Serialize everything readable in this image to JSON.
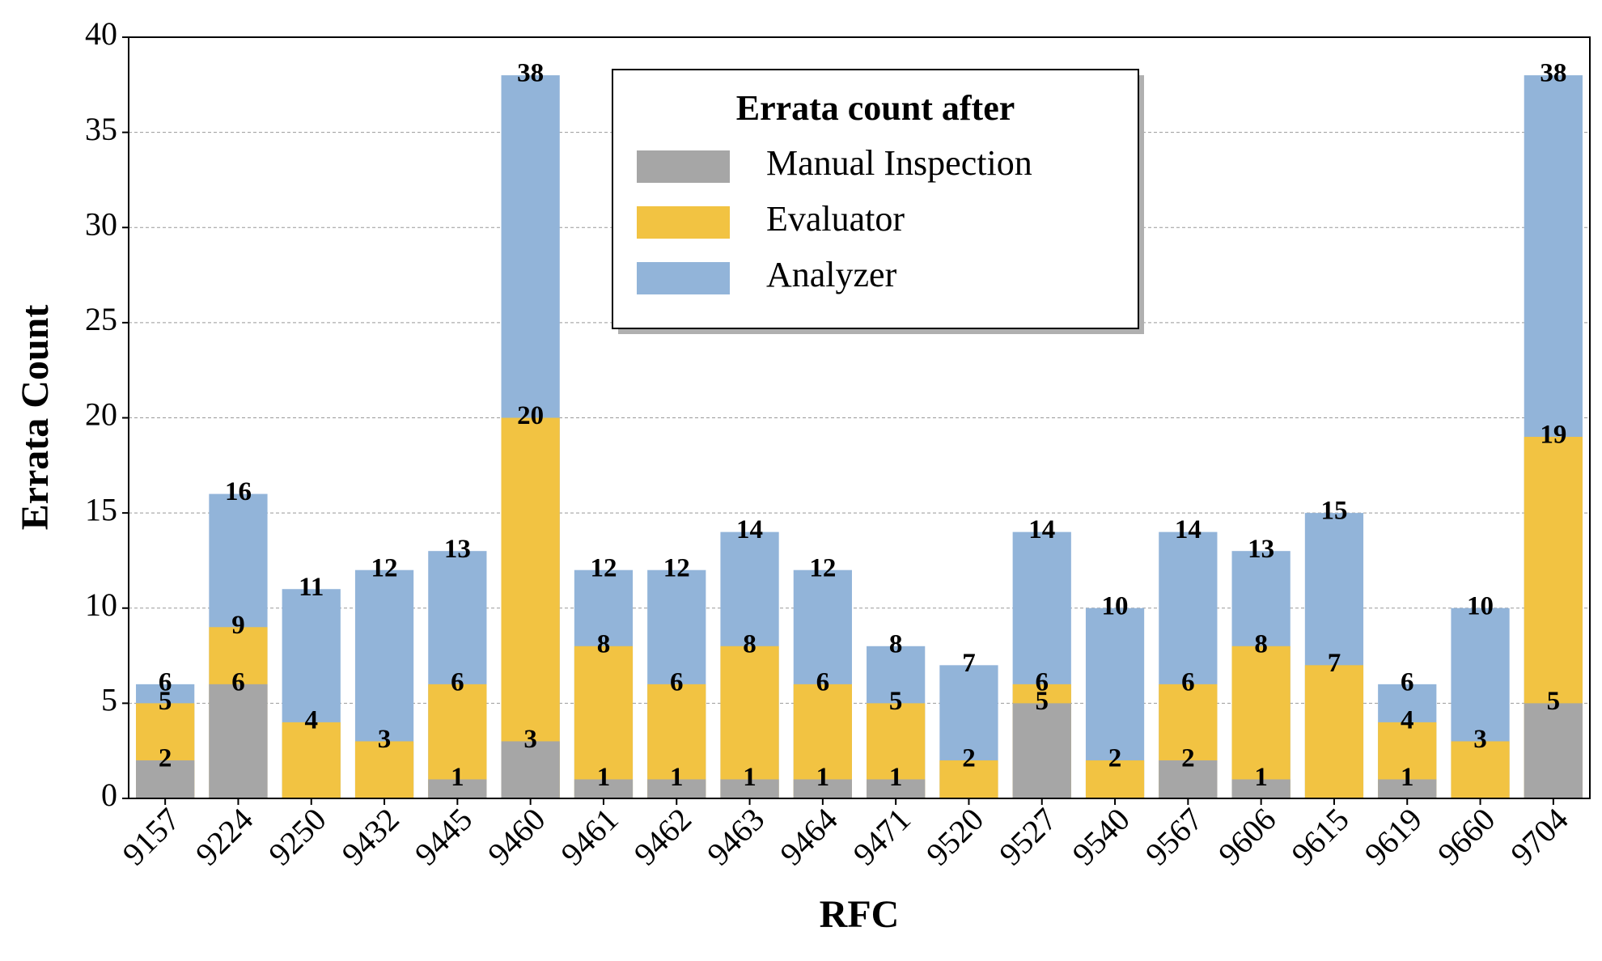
{
  "chart_data": {
    "type": "bar",
    "overlap": true,
    "xlabel": "RFC",
    "ylabel": "Errata Count",
    "categories": [
      "9157",
      "9224",
      "9250",
      "9432",
      "9445",
      "9460",
      "9461",
      "9462",
      "9463",
      "9464",
      "9471",
      "9520",
      "9527",
      "9540",
      "9567",
      "9606",
      "9615",
      "9619",
      "9660",
      "9704"
    ],
    "series": [
      {
        "name": "Manual Inspection",
        "color": "#a6a6a6",
        "values": [
          2,
          6,
          0,
          0,
          1,
          3,
          1,
          1,
          1,
          1,
          1,
          0,
          5,
          0,
          2,
          1,
          0,
          1,
          0,
          5
        ]
      },
      {
        "name": "Evaluator",
        "color": "#f2c342",
        "values": [
          5,
          9,
          4,
          3,
          6,
          20,
          8,
          6,
          8,
          6,
          5,
          2,
          6,
          2,
          6,
          8,
          7,
          4,
          3,
          19
        ]
      },
      {
        "name": "Analyzer",
        "color": "#92b4d9",
        "values": [
          6,
          16,
          11,
          12,
          13,
          38,
          12,
          12,
          14,
          12,
          8,
          7,
          14,
          10,
          14,
          13,
          15,
          6,
          10,
          38
        ]
      }
    ],
    "ylim": [
      0,
      40
    ],
    "yticks": [
      0,
      5,
      10,
      15,
      20,
      25,
      30,
      35,
      40
    ],
    "grid": true,
    "legend": {
      "title": "Errata count after",
      "loc": "upper center"
    }
  }
}
